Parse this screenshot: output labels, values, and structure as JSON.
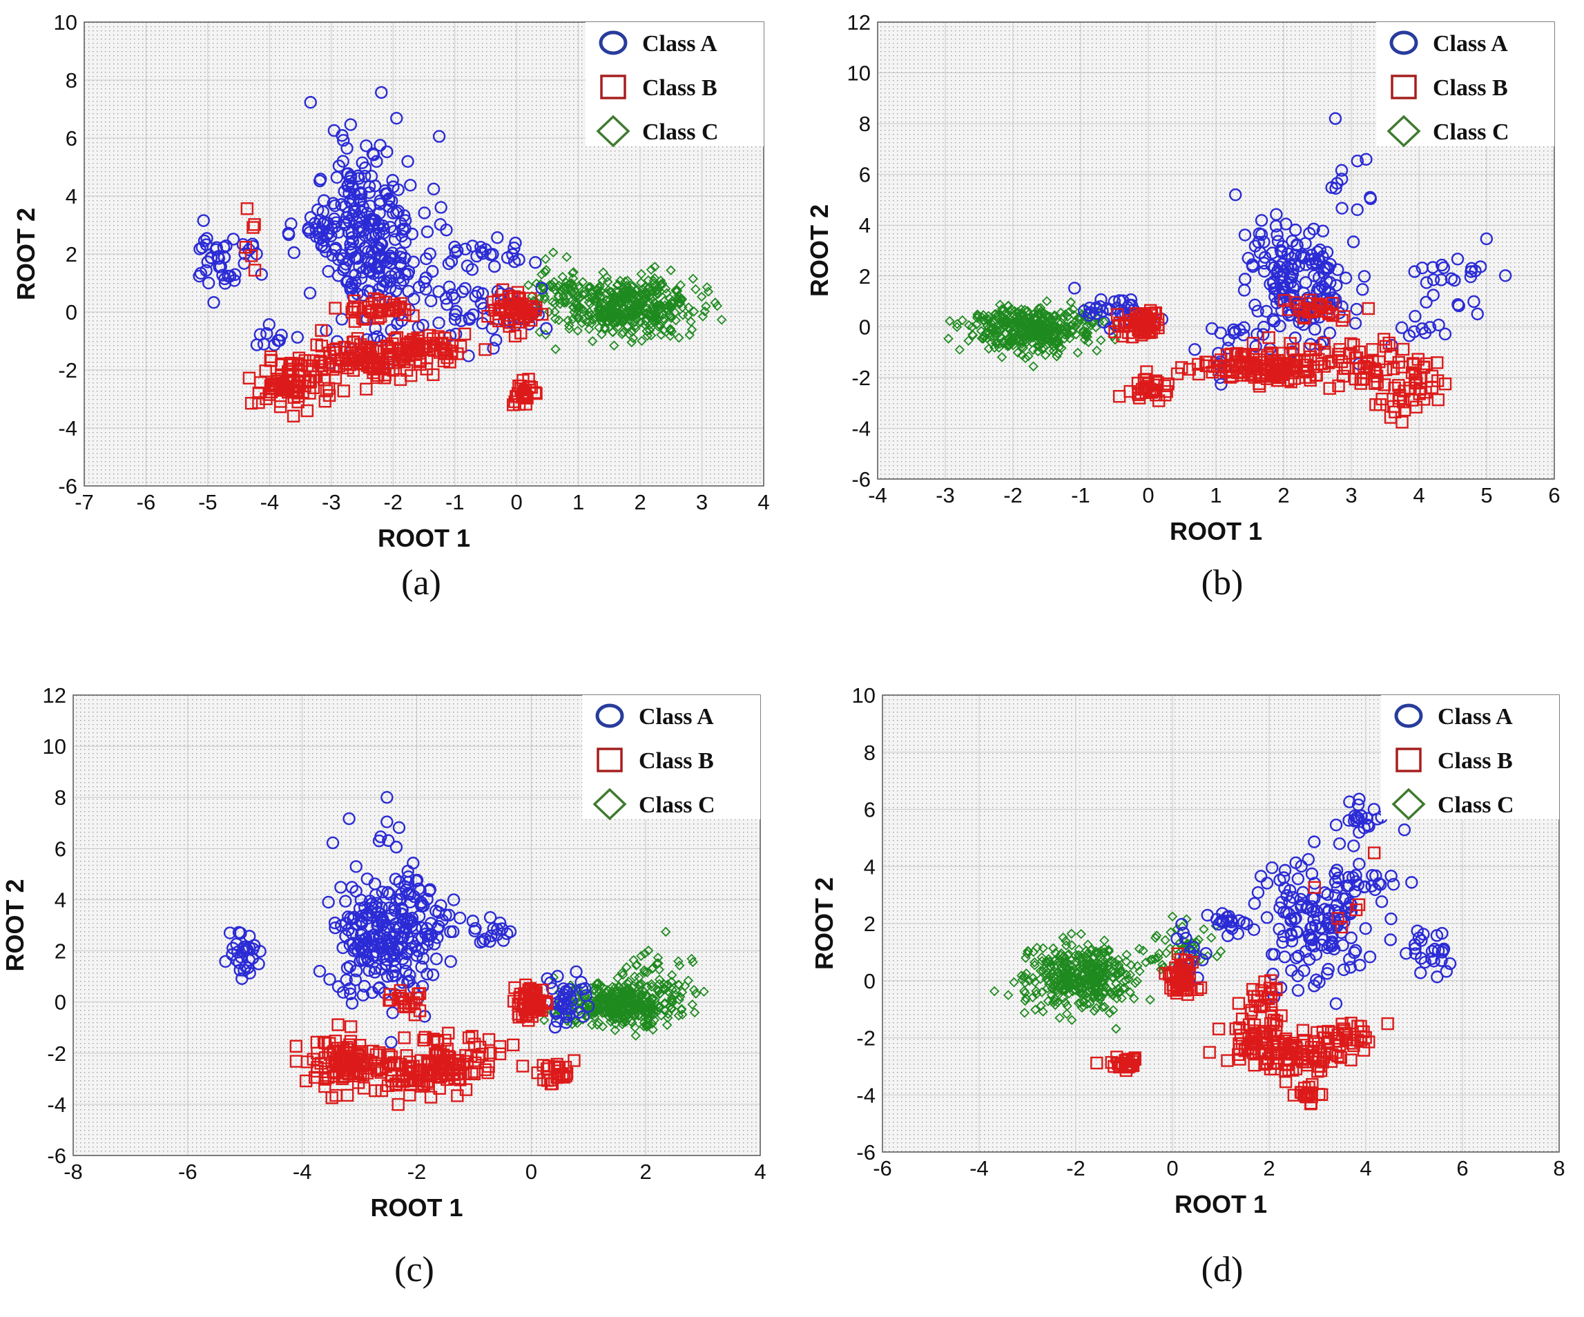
{
  "chart_data": [
    {
      "type": "scatter",
      "panel_label": "(a)",
      "xlabel": "ROOT 1",
      "ylabel": "ROOT 2",
      "xlim": [
        -7,
        4
      ],
      "ylim": [
        -6,
        10
      ],
      "xticks": [
        -7,
        -6,
        -5,
        -4,
        -3,
        -2,
        -1,
        0,
        1,
        2,
        3,
        4
      ],
      "yticks": [
        -6,
        -4,
        -2,
        0,
        2,
        4,
        6,
        8,
        10
      ],
      "grid": true,
      "legend_position": "top-right",
      "series": [
        {
          "name": "Class A",
          "marker": "circle",
          "color": "#2b2bd6",
          "clusters": [
            {
              "cx": -4.8,
              "cy": 1.9,
              "sx": 0.25,
              "sy": 0.6,
              "n": 40
            },
            {
              "cx": -2.6,
              "cy": 2.6,
              "sx": 0.35,
              "sy": 1.7,
              "n": 160
            },
            {
              "cx": -2.0,
              "cy": 2.5,
              "sx": 0.4,
              "sy": 1.5,
              "n": 110
            },
            {
              "cx": -3.1,
              "cy": 2.9,
              "sx": 0.25,
              "sy": 0.3,
              "n": 25
            },
            {
              "cx": -1.0,
              "cy": 0.2,
              "sx": 0.4,
              "sy": 0.8,
              "n": 30
            },
            {
              "cx": -0.4,
              "cy": 2.0,
              "sx": 0.3,
              "sy": 0.3,
              "n": 20
            },
            {
              "cx": 0.1,
              "cy": 0.1,
              "sx": 0.3,
              "sy": 0.4,
              "n": 30
            },
            {
              "cx": -3.9,
              "cy": -0.9,
              "sx": 0.2,
              "sy": 0.2,
              "n": 10
            }
          ]
        },
        {
          "name": "Class B",
          "marker": "square",
          "color": "#dd1a1a",
          "clusters": [
            {
              "cx": -3.7,
              "cy": -2.5,
              "sx": 0.3,
              "sy": 0.4,
              "n": 80
            },
            {
              "cx": -2.5,
              "cy": -1.7,
              "sx": 0.5,
              "sy": 0.35,
              "n": 110
            },
            {
              "cx": -1.5,
              "cy": -1.3,
              "sx": 0.4,
              "sy": 0.3,
              "n": 60
            },
            {
              "cx": -2.2,
              "cy": 0.1,
              "sx": 0.25,
              "sy": 0.2,
              "n": 35
            },
            {
              "cx": 0.0,
              "cy": 0.1,
              "sx": 0.2,
              "sy": 0.3,
              "n": 60
            },
            {
              "cx": 0.1,
              "cy": -2.8,
              "sx": 0.15,
              "sy": 0.3,
              "n": 25
            },
            {
              "cx": -4.3,
              "cy": 2.5,
              "sx": 0.15,
              "sy": 0.9,
              "n": 6
            }
          ]
        },
        {
          "name": "Class C",
          "marker": "diamond",
          "color": "#1f8a1f",
          "clusters": [
            {
              "cx": 1.8,
              "cy": 0.2,
              "sx": 0.55,
              "sy": 0.5,
              "n": 420
            },
            {
              "cx": 0.7,
              "cy": 0.6,
              "sx": 0.35,
              "sy": 0.5,
              "n": 70
            }
          ]
        }
      ]
    },
    {
      "type": "scatter",
      "panel_label": "(b)",
      "xlabel": "ROOT 1",
      "ylabel": "ROOT 2",
      "xlim": [
        -4,
        6
      ],
      "ylim": [
        -6,
        12
      ],
      "xticks": [
        -4,
        -3,
        -2,
        -1,
        0,
        1,
        2,
        3,
        4,
        5,
        6
      ],
      "yticks": [
        -6,
        -4,
        -2,
        0,
        2,
        4,
        6,
        8,
        10,
        12
      ],
      "grid": true,
      "legend_position": "top-right",
      "series": [
        {
          "name": "Class A",
          "marker": "circle",
          "color": "#2b2bd6",
          "clusters": [
            {
              "cx": 2.1,
              "cy": 2.0,
              "sx": 0.35,
              "sy": 1.2,
              "n": 120
            },
            {
              "cx": 2.6,
              "cy": 0.5,
              "sx": 0.4,
              "sy": 0.8,
              "n": 50
            },
            {
              "cx": 3.0,
              "cy": 6.0,
              "sx": 0.15,
              "sy": 1.0,
              "n": 12
            },
            {
              "cx": 4.4,
              "cy": 2.0,
              "sx": 0.35,
              "sy": 0.8,
              "n": 25
            },
            {
              "cx": 1.2,
              "cy": -0.8,
              "sx": 0.35,
              "sy": 0.6,
              "n": 20
            },
            {
              "cx": -0.4,
              "cy": 0.6,
              "sx": 0.3,
              "sy": 0.3,
              "n": 35
            },
            {
              "cx": 4.0,
              "cy": 0.0,
              "sx": 0.2,
              "sy": 0.2,
              "n": 8
            }
          ]
        },
        {
          "name": "Class B",
          "marker": "square",
          "color": "#dd1a1a",
          "clusters": [
            {
              "cx": -0.1,
              "cy": 0.2,
              "sx": 0.15,
              "sy": 0.25,
              "n": 60
            },
            {
              "cx": 0.0,
              "cy": -2.5,
              "sx": 0.15,
              "sy": 0.25,
              "n": 30
            },
            {
              "cx": 1.7,
              "cy": -1.6,
              "sx": 0.5,
              "sy": 0.35,
              "n": 140
            },
            {
              "cx": 2.5,
              "cy": 0.7,
              "sx": 0.25,
              "sy": 0.2,
              "n": 30
            },
            {
              "cx": 3.1,
              "cy": -1.5,
              "sx": 0.35,
              "sy": 0.5,
              "n": 50
            },
            {
              "cx": 3.8,
              "cy": -2.3,
              "sx": 0.25,
              "sy": 0.7,
              "n": 40
            }
          ]
        },
        {
          "name": "Class C",
          "marker": "diamond",
          "color": "#1f8a1f",
          "clusters": [
            {
              "cx": -1.7,
              "cy": -0.1,
              "sx": 0.45,
              "sy": 0.45,
              "n": 420
            }
          ]
        }
      ]
    },
    {
      "type": "scatter",
      "panel_label": "(c)",
      "xlabel": "ROOT 1",
      "ylabel": "ROOT 2",
      "xlim": [
        -8,
        4
      ],
      "ylim": [
        -6,
        12
      ],
      "xticks": [
        -8,
        -6,
        -4,
        -2,
        0,
        2,
        4
      ],
      "yticks": [
        -6,
        -4,
        -2,
        0,
        2,
        4,
        6,
        8,
        10,
        12
      ],
      "grid": true,
      "legend_position": "top-right",
      "series": [
        {
          "name": "Class A",
          "marker": "circle",
          "color": "#2b2bd6",
          "clusters": [
            {
              "cx": -5.0,
              "cy": 1.9,
              "sx": 0.15,
              "sy": 0.45,
              "n": 30
            },
            {
              "cx": -2.7,
              "cy": 2.6,
              "sx": 0.4,
              "sy": 1.3,
              "n": 170
            },
            {
              "cx": -2.0,
              "cy": 2.6,
              "sx": 0.35,
              "sy": 1.1,
              "n": 90
            },
            {
              "cx": -2.5,
              "cy": 6.5,
              "sx": 0.15,
              "sy": 0.6,
              "n": 8
            },
            {
              "cx": -0.6,
              "cy": 2.7,
              "sx": 0.2,
              "sy": 0.25,
              "n": 15
            },
            {
              "cx": 0.5,
              "cy": 0.0,
              "sx": 0.2,
              "sy": 0.5,
              "n": 40
            }
          ]
        },
        {
          "name": "Class B",
          "marker": "square",
          "color": "#dd1a1a",
          "clusters": [
            {
              "cx": -3.2,
              "cy": -2.4,
              "sx": 0.4,
              "sy": 0.5,
              "n": 110
            },
            {
              "cx": -2.0,
              "cy": -2.8,
              "sx": 0.4,
              "sy": 0.4,
              "n": 70
            },
            {
              "cx": -1.3,
              "cy": -2.3,
              "sx": 0.4,
              "sy": 0.5,
              "n": 60
            },
            {
              "cx": -2.2,
              "cy": 0.0,
              "sx": 0.2,
              "sy": 0.2,
              "n": 20
            },
            {
              "cx": 0.0,
              "cy": 0.0,
              "sx": 0.15,
              "sy": 0.35,
              "n": 60
            },
            {
              "cx": 0.4,
              "cy": -2.7,
              "sx": 0.15,
              "sy": 0.25,
              "n": 25
            }
          ]
        },
        {
          "name": "Class C",
          "marker": "diamond",
          "color": "#1f8a1f",
          "clusters": [
            {
              "cx": 1.6,
              "cy": -0.1,
              "sx": 0.5,
              "sy": 0.45,
              "n": 400
            },
            {
              "cx": 2.3,
              "cy": 1.1,
              "sx": 0.4,
              "sy": 0.6,
              "n": 40
            }
          ]
        }
      ]
    },
    {
      "type": "scatter",
      "panel_label": "(d)",
      "xlabel": "ROOT 1",
      "ylabel": "ROOT 2",
      "xlim": [
        -6,
        8
      ],
      "ylim": [
        -6,
        10
      ],
      "xticks": [
        -6,
        -4,
        -2,
        0,
        2,
        4,
        6,
        8
      ],
      "yticks": [
        -6,
        -4,
        -2,
        0,
        2,
        4,
        6,
        8,
        10
      ],
      "grid": true,
      "legend_position": "top-right",
      "series": [
        {
          "name": "Class A",
          "marker": "circle",
          "color": "#2b2bd6",
          "clusters": [
            {
              "cx": 3.0,
              "cy": 2.2,
              "sx": 0.6,
              "sy": 1.2,
              "n": 150
            },
            {
              "cx": 3.9,
              "cy": 5.6,
              "sx": 0.25,
              "sy": 0.3,
              "n": 20
            },
            {
              "cx": 5.4,
              "cy": 1.0,
              "sx": 0.3,
              "sy": 0.4,
              "n": 25
            },
            {
              "cx": 1.1,
              "cy": 2.1,
              "sx": 0.25,
              "sy": 0.2,
              "n": 20
            },
            {
              "cx": 4.2,
              "cy": 3.3,
              "sx": 0.3,
              "sy": 0.2,
              "n": 15
            },
            {
              "cx": 0.3,
              "cy": 0.8,
              "sx": 0.2,
              "sy": 0.5,
              "n": 20
            }
          ]
        },
        {
          "name": "Class B",
          "marker": "square",
          "color": "#dd1a1a",
          "clusters": [
            {
              "cx": 0.2,
              "cy": 0.1,
              "sx": 0.15,
              "sy": 0.35,
              "n": 50
            },
            {
              "cx": -1.0,
              "cy": -2.9,
              "sx": 0.2,
              "sy": 0.15,
              "n": 25
            },
            {
              "cx": 1.7,
              "cy": -1.9,
              "sx": 0.3,
              "sy": 0.4,
              "n": 50
            },
            {
              "cx": 2.6,
              "cy": -2.6,
              "sx": 0.5,
              "sy": 0.35,
              "n": 90
            },
            {
              "cx": 2.8,
              "cy": -3.9,
              "sx": 0.15,
              "sy": 0.2,
              "n": 20
            },
            {
              "cx": 3.6,
              "cy": -1.9,
              "sx": 0.3,
              "sy": 0.2,
              "n": 30
            },
            {
              "cx": 1.9,
              "cy": -0.6,
              "sx": 0.15,
              "sy": 0.3,
              "n": 20
            },
            {
              "cx": 3.5,
              "cy": 2.5,
              "sx": 0.4,
              "sy": 1.2,
              "n": 6
            }
          ]
        },
        {
          "name": "Class C",
          "marker": "diamond",
          "color": "#1f8a1f",
          "clusters": [
            {
              "cx": -1.9,
              "cy": 0.1,
              "sx": 0.55,
              "sy": 0.6,
              "n": 380
            },
            {
              "cx": 0.2,
              "cy": 1.1,
              "sx": 0.35,
              "sy": 0.4,
              "n": 50
            }
          ]
        }
      ]
    }
  ]
}
